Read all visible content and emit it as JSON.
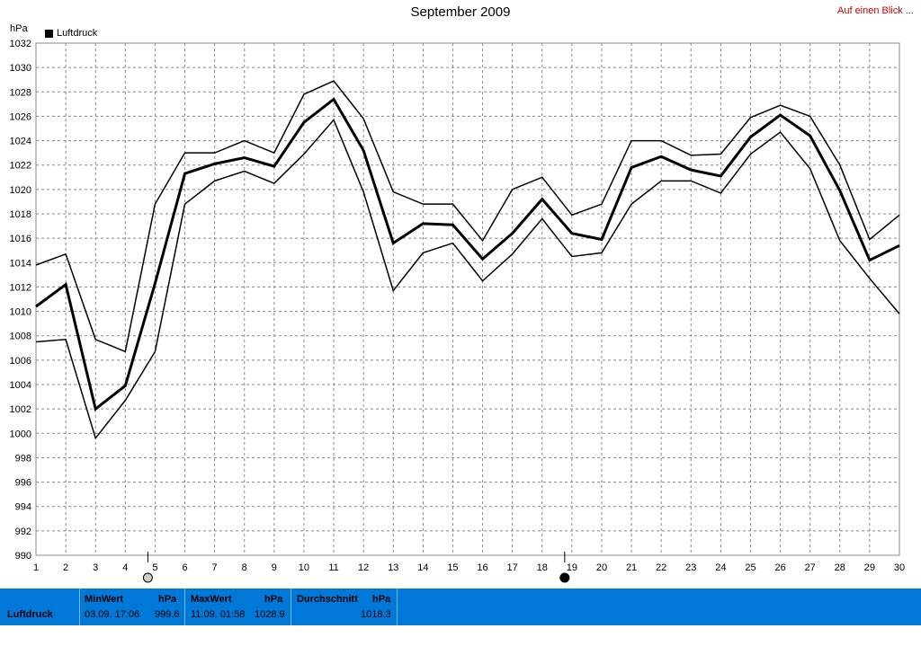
{
  "header": {
    "title": "September 2009",
    "link": "Auf einen Blick ..."
  },
  "chart_data": {
    "type": "line",
    "title": "September 2009",
    "ylabel": "hPa",
    "xlabel": "",
    "ylim": [
      990,
      1032
    ],
    "yticks": [
      990,
      992,
      994,
      996,
      998,
      1000,
      1002,
      1004,
      1006,
      1008,
      1010,
      1012,
      1014,
      1016,
      1018,
      1020,
      1022,
      1024,
      1026,
      1028,
      1030,
      1032
    ],
    "x": [
      1,
      2,
      3,
      4,
      5,
      6,
      7,
      8,
      9,
      10,
      11,
      12,
      13,
      14,
      15,
      16,
      17,
      18,
      19,
      20,
      21,
      22,
      23,
      24,
      25,
      26,
      27,
      28,
      29,
      30
    ],
    "grid": true,
    "legend": "top-left",
    "legend_label": "Luftdruck",
    "series": [
      {
        "name": "Luftdruck",
        "role": "avg",
        "values": [
          1010.4,
          1012.2,
          1002.0,
          1003.9,
          1012.3,
          1021.3,
          1022.1,
          1022.6,
          1021.9,
          1025.5,
          1027.4,
          1023.2,
          1015.6,
          1017.2,
          1017.1,
          1014.3,
          1016.4,
          1019.2,
          1016.4,
          1015.9,
          1021.8,
          1022.7,
          1021.6,
          1021.1,
          1024.3,
          1026.1,
          1024.4,
          1019.9,
          1014.2,
          1015.4
        ]
      },
      {
        "role": "max",
        "values": [
          1013.8,
          1014.7,
          1007.7,
          1006.7,
          1018.8,
          1023.0,
          1023.0,
          1024.0,
          1023.0,
          1027.8,
          1028.9,
          1025.8,
          1019.8,
          1018.8,
          1018.8,
          1015.8,
          1020.0,
          1021.0,
          1017.9,
          1018.8,
          1024.0,
          1024.0,
          1022.8,
          1022.9,
          1025.9,
          1026.9,
          1026.0,
          1022.0,
          1015.9,
          1017.9
        ]
      },
      {
        "role": "min",
        "values": [
          1007.5,
          1007.7,
          999.6,
          1002.7,
          1006.7,
          1018.8,
          1020.7,
          1021.5,
          1020.5,
          1022.9,
          1025.7,
          1019.8,
          1011.7,
          1014.8,
          1015.6,
          1012.5,
          1014.7,
          1017.6,
          1014.5,
          1014.8,
          1018.8,
          1020.7,
          1020.7,
          1019.7,
          1022.9,
          1024.7,
          1021.7,
          1015.8,
          1012.7,
          1009.8
        ]
      }
    ],
    "markers": [
      {
        "x": 5,
        "style": "open",
        "color": "#cccccc"
      },
      {
        "x": 19,
        "style": "filled",
        "color": "#000000"
      }
    ]
  },
  "footer": {
    "label": "Luftdruck",
    "min": {
      "title": "MinWert",
      "unit": "hPa",
      "time": "03.09.  17:06",
      "value": "999.6"
    },
    "max": {
      "title": "MaxWert",
      "unit": "hPa",
      "time": "11.09.  01:58",
      "value": "1028.9"
    },
    "avg": {
      "title": "Durchschnitt",
      "unit": "hPa",
      "value": "1018.3"
    }
  },
  "colors": {
    "footer_bg": "#0078d7",
    "link": "#cc0000",
    "line": "#000000"
  }
}
